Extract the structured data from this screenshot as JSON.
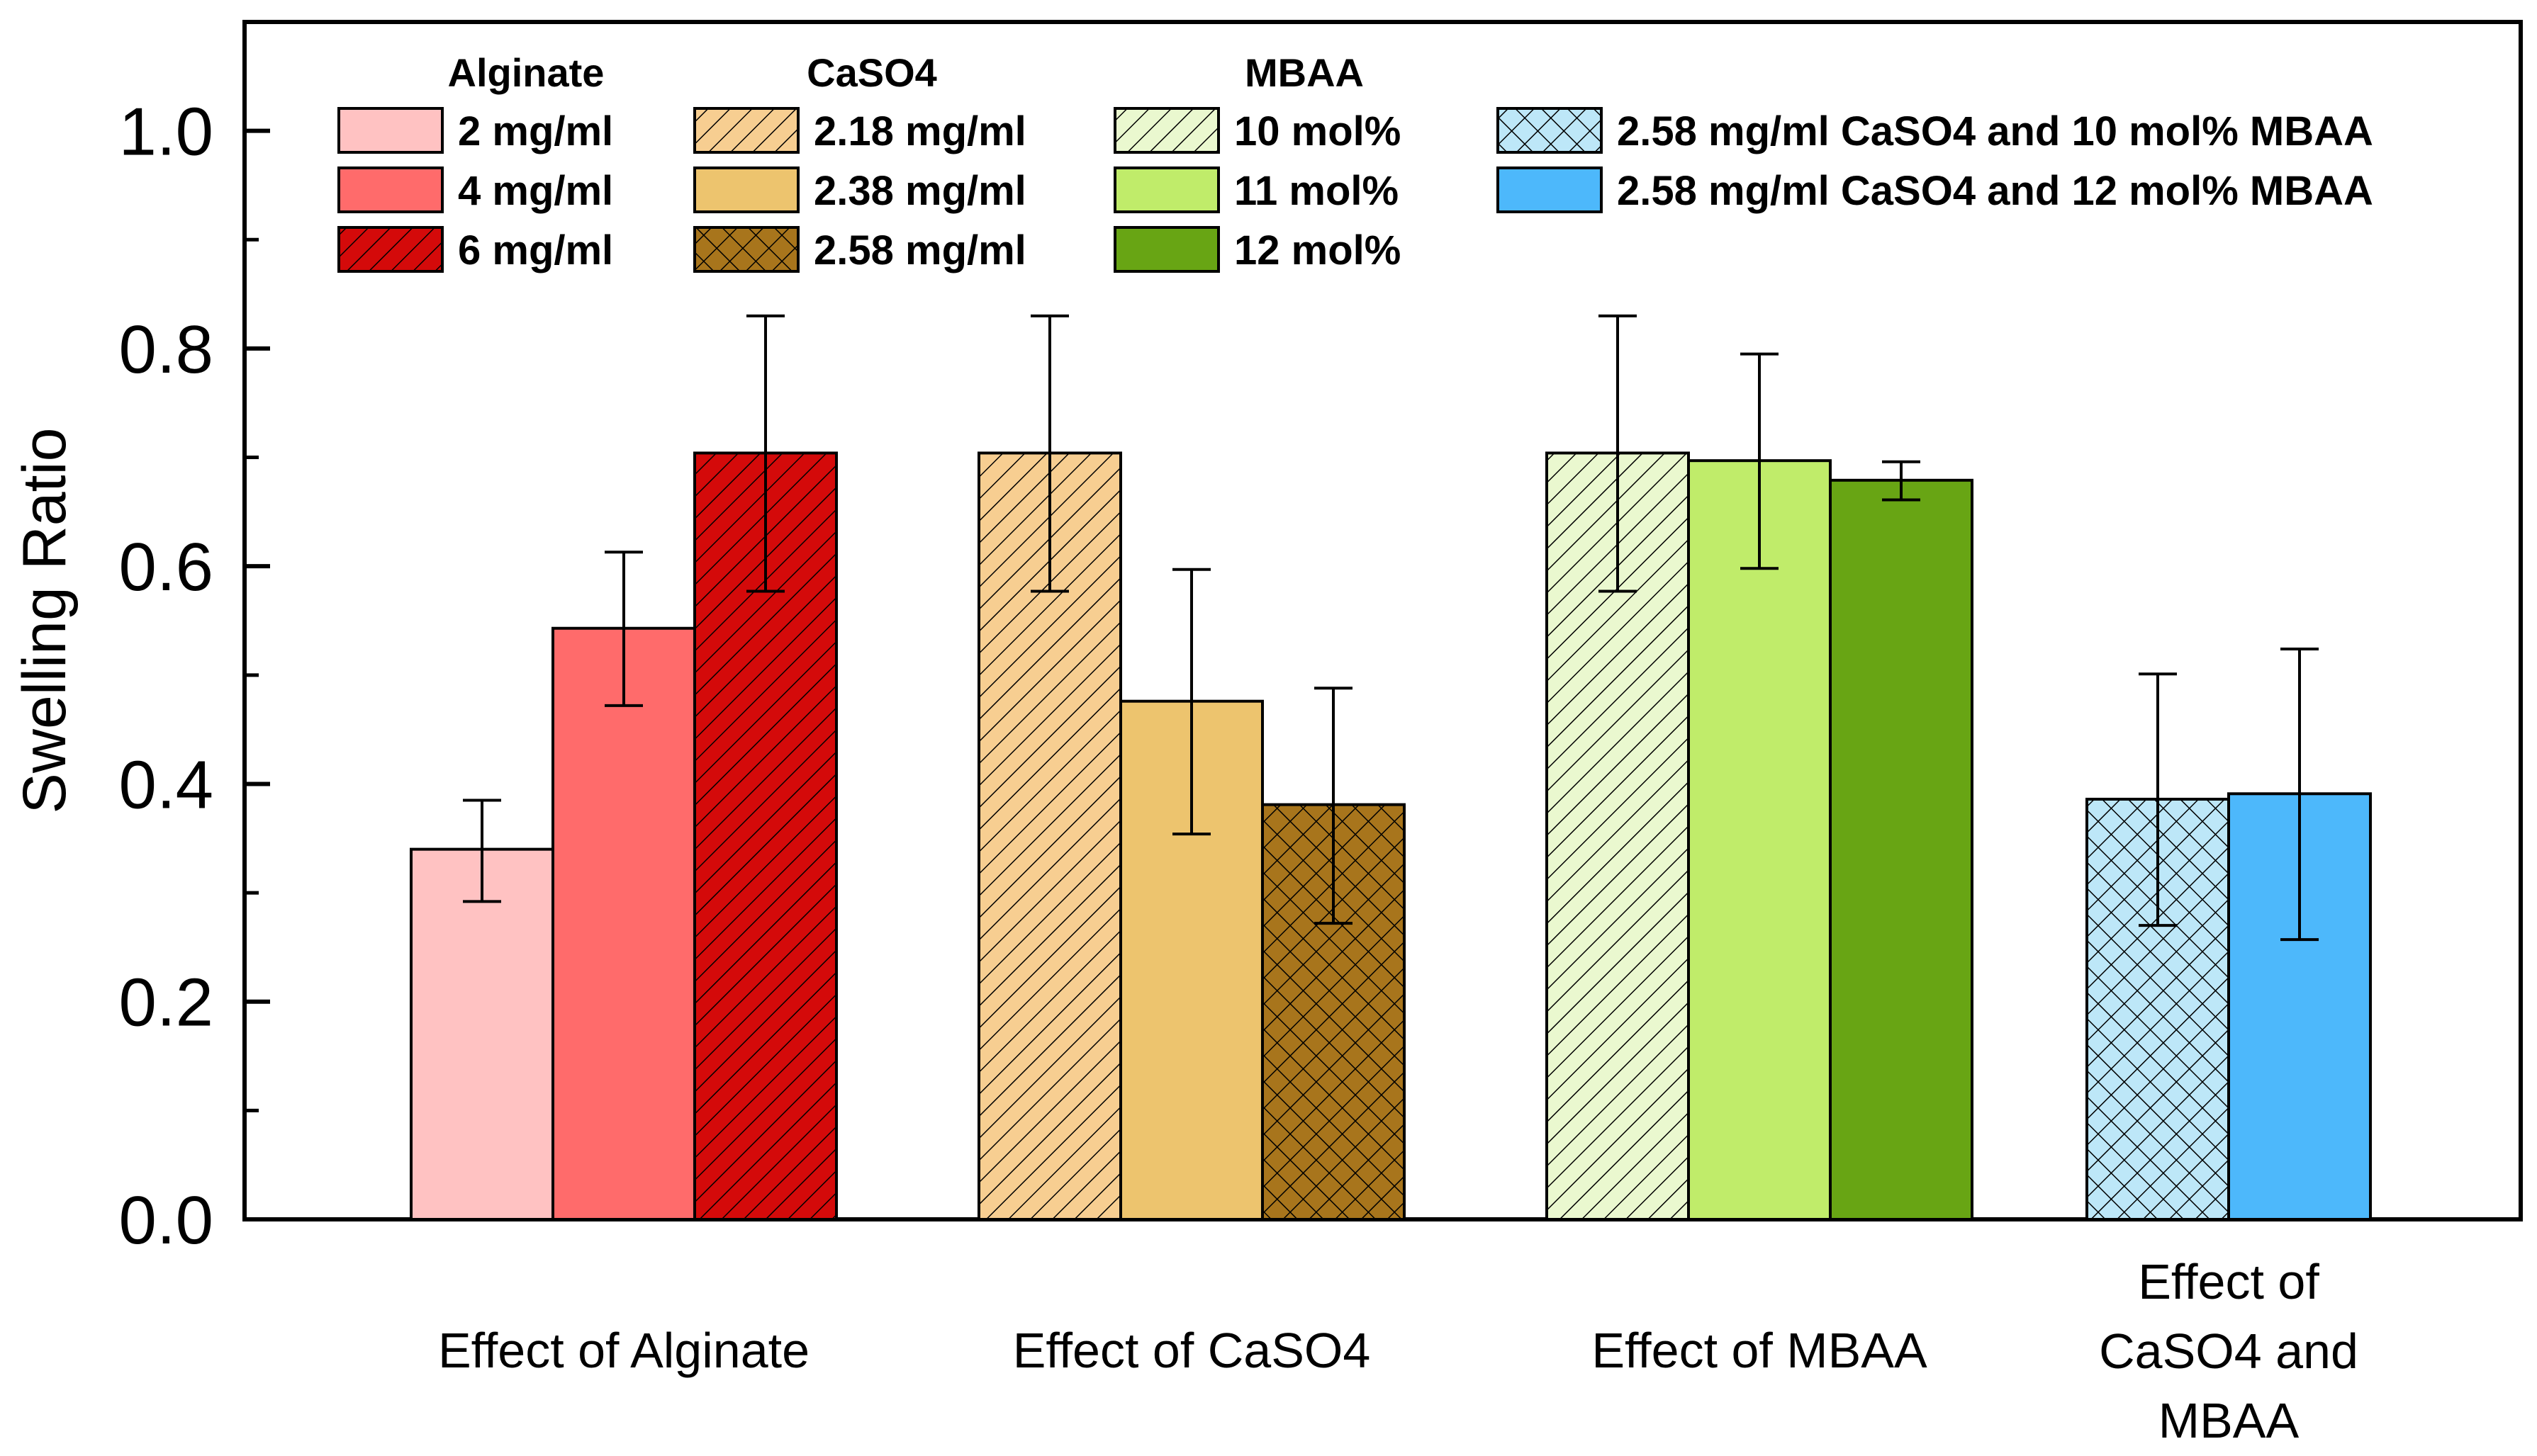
{
  "chart_data": {
    "type": "bar",
    "title": "",
    "xlabel": "",
    "ylabel": "Swelling Ratio",
    "ylim": [
      0,
      1.1
    ],
    "yticks": [
      "0.0",
      "0.2",
      "0.4",
      "0.6",
      "0.8",
      "1.0"
    ],
    "legend_titles": [
      "Alginate",
      "CaSO4",
      "MBAA"
    ],
    "legend_position": "top",
    "groups": [
      {
        "label_lines": [
          "Effect of Alginate"
        ],
        "bars": [
          {
            "name": "2 mg/ml",
            "value": 0.34,
            "err_low": 0.292,
            "err_high": 0.385,
            "color": "#FFC2C2",
            "pattern": "none"
          },
          {
            "name": "4 mg/ml",
            "value": 0.543,
            "err_low": 0.472,
            "err_high": 0.613,
            "color": "#FF6B6B",
            "pattern": "none"
          },
          {
            "name": "6 mg/ml",
            "value": 0.704,
            "err_low": 0.577,
            "err_high": 0.83,
            "color": "#D40A0A",
            "pattern": "hatch"
          }
        ]
      },
      {
        "label_lines": [
          "Effect of CaSO4"
        ],
        "bars": [
          {
            "name": "2.18 mg/ml",
            "value": 0.704,
            "err_low": 0.577,
            "err_high": 0.83,
            "color": "#F7CE91",
            "pattern": "hatch"
          },
          {
            "name": "2.38 mg/ml",
            "value": 0.476,
            "err_low": 0.354,
            "err_high": 0.597,
            "color": "#EDC46E",
            "pattern": "none"
          },
          {
            "name": "2.58 mg/ml",
            "value": 0.381,
            "err_low": 0.272,
            "err_high": 0.488,
            "color": "#A8751C",
            "pattern": "cross"
          }
        ]
      },
      {
        "label_lines": [
          "Effect of MBAA"
        ],
        "bars": [
          {
            "name": "10 mol%",
            "value": 0.704,
            "err_low": 0.577,
            "err_high": 0.83,
            "color": "#EAF8CF",
            "pattern": "hatch"
          },
          {
            "name": "11 mol%",
            "value": 0.697,
            "err_low": 0.598,
            "err_high": 0.795,
            "color": "#C0EC6A",
            "pattern": "none"
          },
          {
            "name": "12 mol%",
            "value": 0.679,
            "err_low": 0.661,
            "err_high": 0.696,
            "color": "#68A514",
            "pattern": "none"
          }
        ]
      },
      {
        "label_lines": [
          "Effect of",
          "CaSO4 and",
          "MBAA"
        ],
        "bars": [
          {
            "name": "2.58 mg/ml CaSO4 and 10 mol% MBAA",
            "value": 0.386,
            "err_low": 0.27,
            "err_high": 0.501,
            "color": "#BDE7F8",
            "pattern": "cross"
          },
          {
            "name": "2.58 mg/ml CaSO4 and 12 mol% MBAA",
            "value": 0.391,
            "err_low": 0.257,
            "err_high": 0.524,
            "color": "#4DB8FB",
            "pattern": "none"
          }
        ]
      }
    ]
  }
}
